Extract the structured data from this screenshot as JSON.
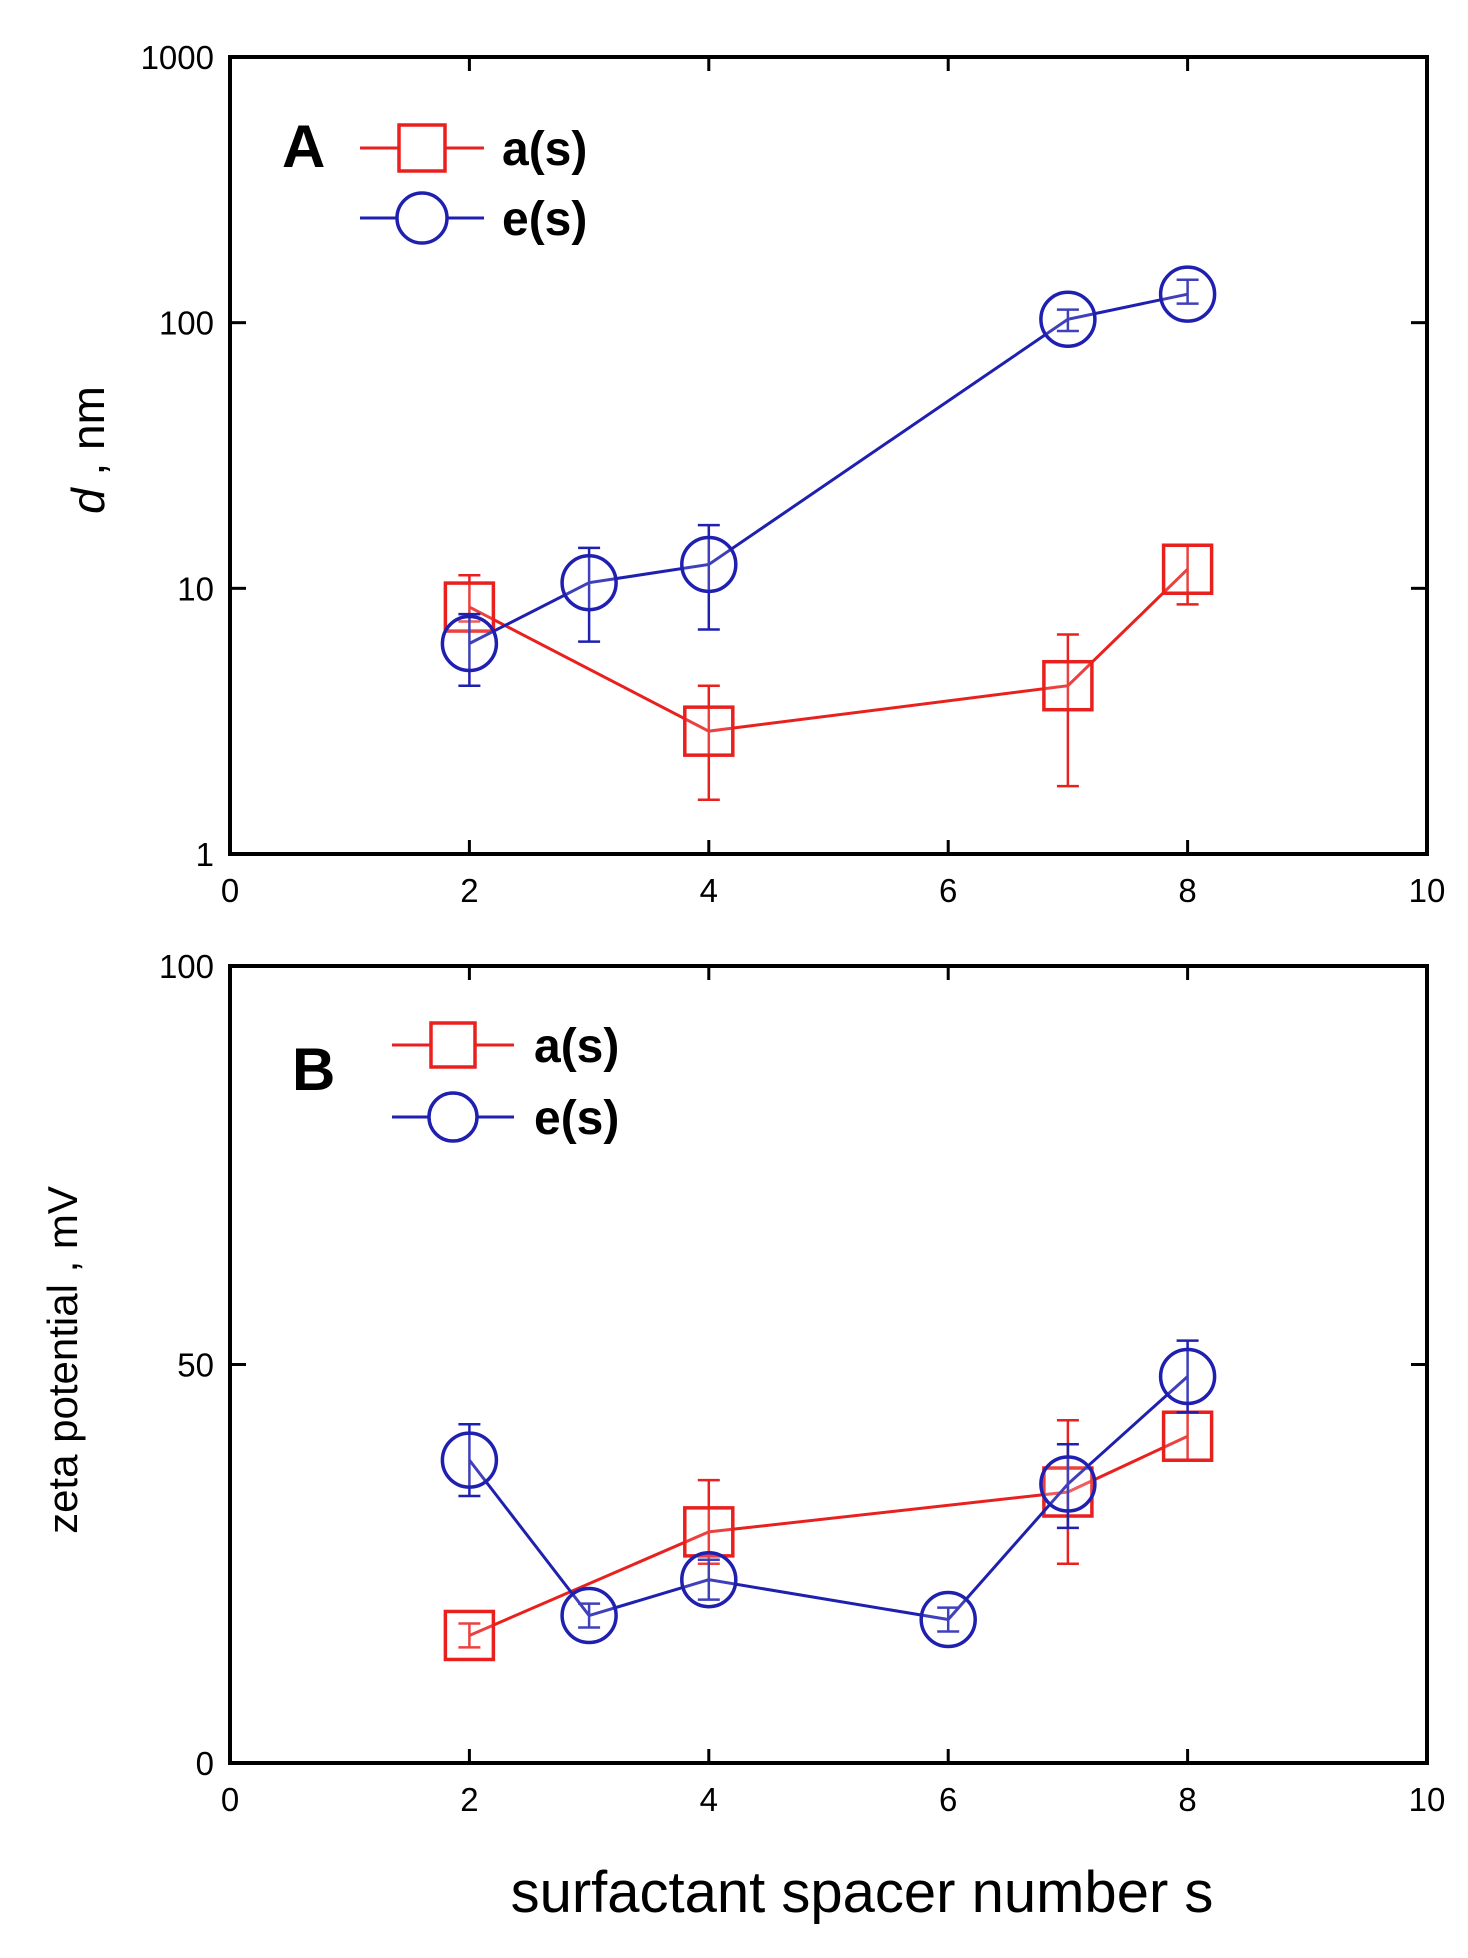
{
  "figure": {
    "colors": {
      "a": "#e8211f",
      "e": "#1f1fb0",
      "axis": "#000000"
    }
  },
  "chart_data": [
    {
      "type": "scatter",
      "panel_label": "A",
      "title": "",
      "xlabel": "",
      "ylabel_italic": "d",
      "ylabel_rest": " , nm",
      "yscale": "log",
      "xlim": [
        0,
        10
      ],
      "ylim": [
        1,
        1000
      ],
      "x_ticks": [
        "0",
        "2",
        "4",
        "6",
        "8",
        "10"
      ],
      "y_ticks": [
        "1",
        "10",
        "100",
        "1000"
      ],
      "legend_position": "top-left",
      "series": [
        {
          "name": "a(s)",
          "marker": "square",
          "color": "#e8211f",
          "x": [
            2,
            4,
            7,
            8
          ],
          "y": [
            8.5,
            2.9,
            4.3,
            11.8
          ],
          "err_low": [
            7.5,
            1.6,
            1.8,
            8.7
          ],
          "err_high": [
            11.2,
            4.3,
            6.7,
            14.5
          ]
        },
        {
          "name": "e(s)",
          "marker": "circle",
          "color": "#1f1fb0",
          "x": [
            2,
            3,
            4,
            7,
            8
          ],
          "y": [
            6.2,
            10.5,
            12.3,
            103,
            128
          ],
          "err_low": [
            4.3,
            6.3,
            7.0,
            93,
            118
          ],
          "err_high": [
            8.0,
            14.2,
            17.3,
            112,
            145
          ]
        }
      ]
    },
    {
      "type": "scatter",
      "panel_label": "B",
      "title": "",
      "xlabel": "surfactant spacer number s",
      "ylabel": "zeta potential , mV",
      "yscale": "linear",
      "xlim": [
        0,
        10
      ],
      "ylim": [
        0,
        100
      ],
      "x_ticks": [
        "0",
        "2",
        "4",
        "6",
        "8",
        "10"
      ],
      "y_ticks": [
        "0",
        "50",
        "100"
      ],
      "legend_position": "top-left",
      "series": [
        {
          "name": "a(s)",
          "marker": "square",
          "color": "#e8211f",
          "x": [
            2,
            4,
            7,
            8
          ],
          "y": [
            16,
            29,
            34,
            41
          ],
          "err_low": [
            14.5,
            25,
            25,
            38
          ],
          "err_high": [
            17.5,
            35.5,
            43,
            44
          ]
        },
        {
          "name": "e(s)",
          "marker": "circle",
          "color": "#1f1fb0",
          "x": [
            2,
            3,
            4,
            6,
            7,
            8
          ],
          "y": [
            38,
            18.5,
            23,
            18,
            35,
            48.5
          ],
          "err_low": [
            33.5,
            17,
            20.5,
            16.5,
            29.5,
            44
          ],
          "err_high": [
            42.5,
            20,
            25.5,
            19.5,
            40,
            53
          ]
        }
      ]
    }
  ]
}
